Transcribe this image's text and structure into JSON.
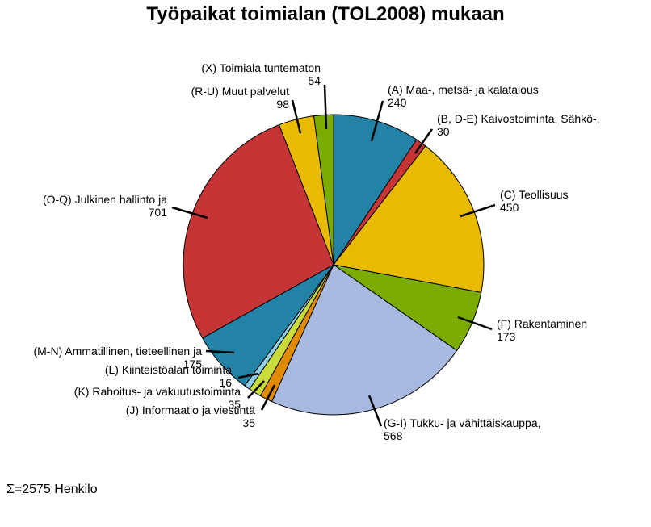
{
  "chart_data": {
    "type": "pie",
    "title": "Työpaikat toimialan (TOL2008) mukaan",
    "total_label": "Σ=2575 Henkilo",
    "slices": [
      {
        "name": "(A) Maa-, metsä- ja kalatalous",
        "value": 240,
        "color": "#2383a6"
      },
      {
        "name": "(B, D-E) Kaivostoiminta, Sähkö-,",
        "value": 30,
        "color": "#c63536"
      },
      {
        "name": "(C) Teollisuus",
        "value": 450,
        "color": "#e8bb00"
      },
      {
        "name": "(F) Rakentaminen",
        "value": 173,
        "color": "#7aab00"
      },
      {
        "name": "(G-I) Tukku- ja vähittäiskauppa,",
        "value": 568,
        "color": "#a7b9df"
      },
      {
        "name": "(J) Informaatio ja viestintä",
        "value": 35,
        "color": "#e08a00"
      },
      {
        "name": "(K) Rahoitus- ja vakuutustoiminta",
        "value": 35,
        "color": "#c9dc3c"
      },
      {
        "name": "(L) Kiinteistöalan toiminta",
        "value": 16,
        "color": "#8fd0e8"
      },
      {
        "name": "(M-N) Ammatillinen, tieteellinen ja",
        "value": 175,
        "color": "#2383a6"
      },
      {
        "name": "(O-Q) Julkinen hallinto ja",
        "value": 701,
        "color": "#c63536"
      },
      {
        "name": "(R-U) Muut palvelut",
        "value": 98,
        "color": "#e8bb00"
      },
      {
        "name": "(X) Toimiala tuntematon",
        "value": 54,
        "color": "#7aab00"
      }
    ]
  }
}
